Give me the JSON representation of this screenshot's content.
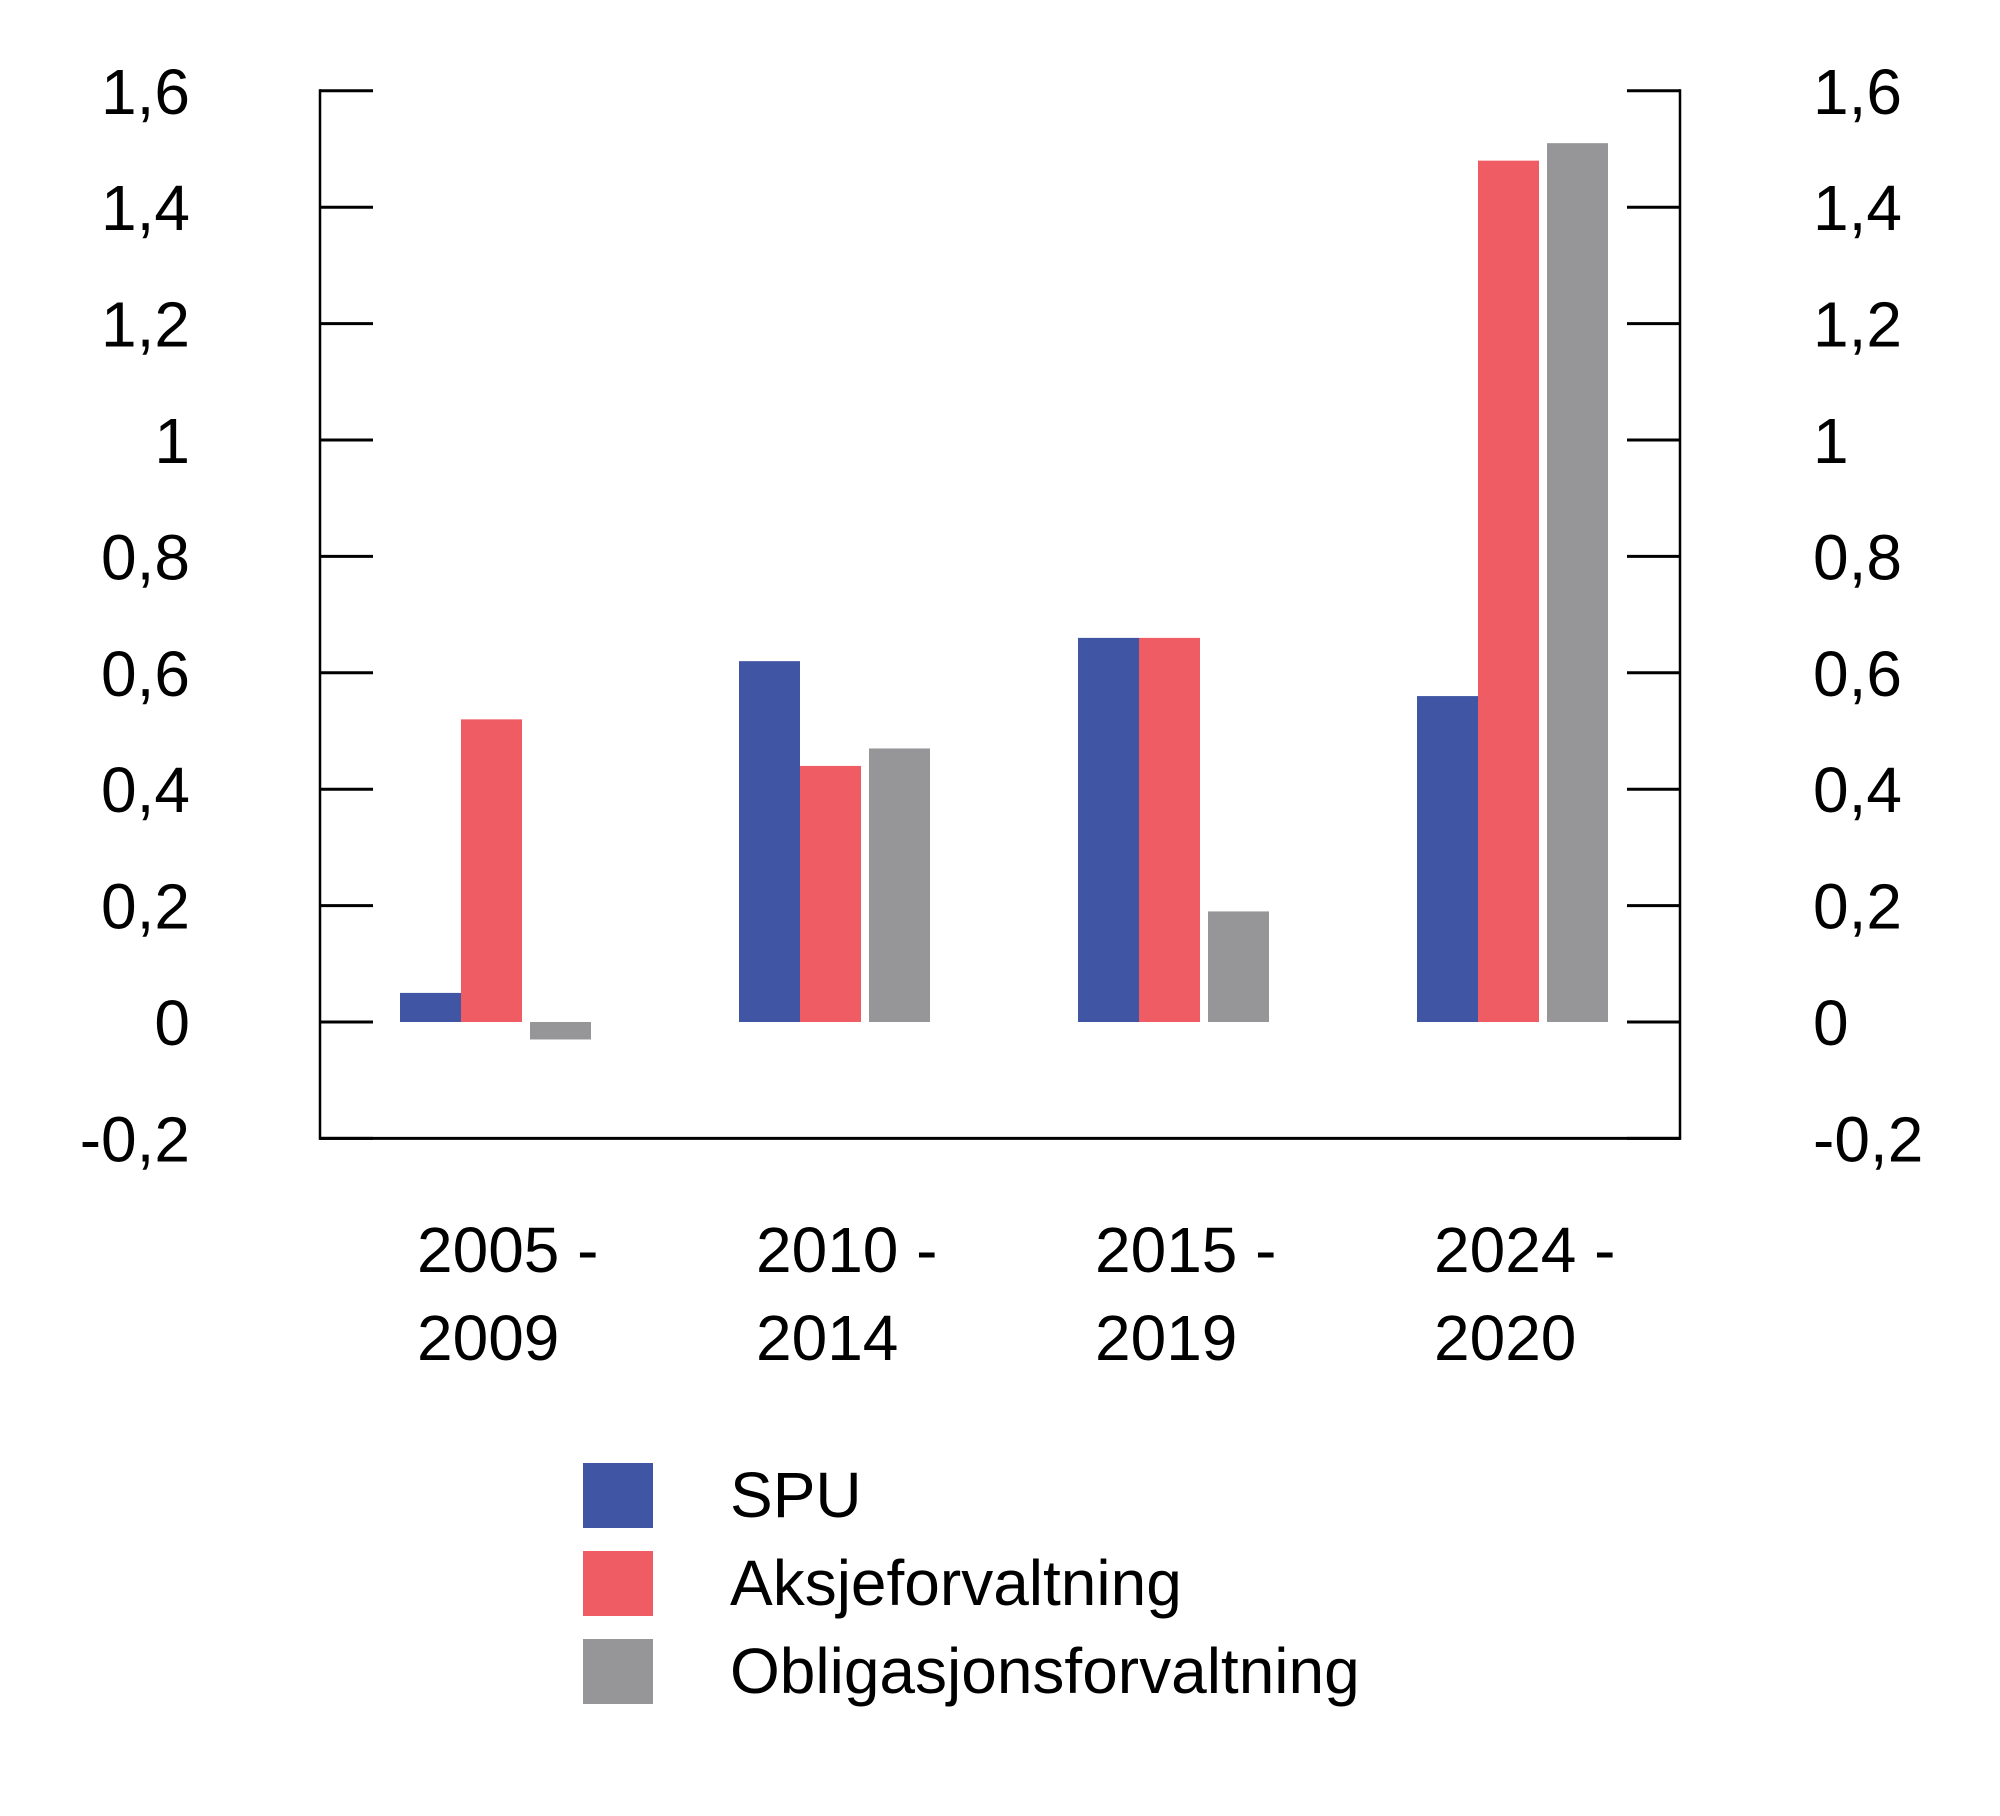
{
  "chart_data": {
    "type": "bar",
    "categories": [
      {
        "line1": "2005 -",
        "line2": "2009"
      },
      {
        "line1": "2010 -",
        "line2": "2014"
      },
      {
        "line1": "2015 -",
        "line2": "2019"
      },
      {
        "line1": "2024 -",
        "line2": "2020"
      }
    ],
    "series": [
      {
        "name": "SPU",
        "color": "#4056A4",
        "values": [
          0.05,
          0.62,
          0.66,
          0.56
        ]
      },
      {
        "name": "Aksjeforvaltning",
        "color": "#F05C64",
        "values": [
          0.52,
          0.44,
          0.66,
          1.48
        ]
      },
      {
        "name": "Obligasjonsforvaltning",
        "color": "#969598",
        "values": [
          -0.03,
          0.47,
          0.19,
          1.51
        ]
      }
    ],
    "y_axis": {
      "min": -0.2,
      "max": 1.6,
      "step": 0.2,
      "tick_labels_top_to_bottom": [
        "1,6",
        "1,4",
        "1,2",
        "1",
        "0,8",
        "0,6",
        "0,4",
        "0,2",
        "0",
        "-0,2"
      ],
      "decimal_separator": ",",
      "duplicate_right_axis": true,
      "grid": false
    },
    "legend": {
      "position": "bottom-left",
      "entries": [
        "SPU",
        "Aksjeforvaltning",
        "Obligasjonsforvaltning"
      ]
    },
    "colors": {
      "background": "#ffffff",
      "axis": "#000000",
      "text": "#000000"
    }
  }
}
